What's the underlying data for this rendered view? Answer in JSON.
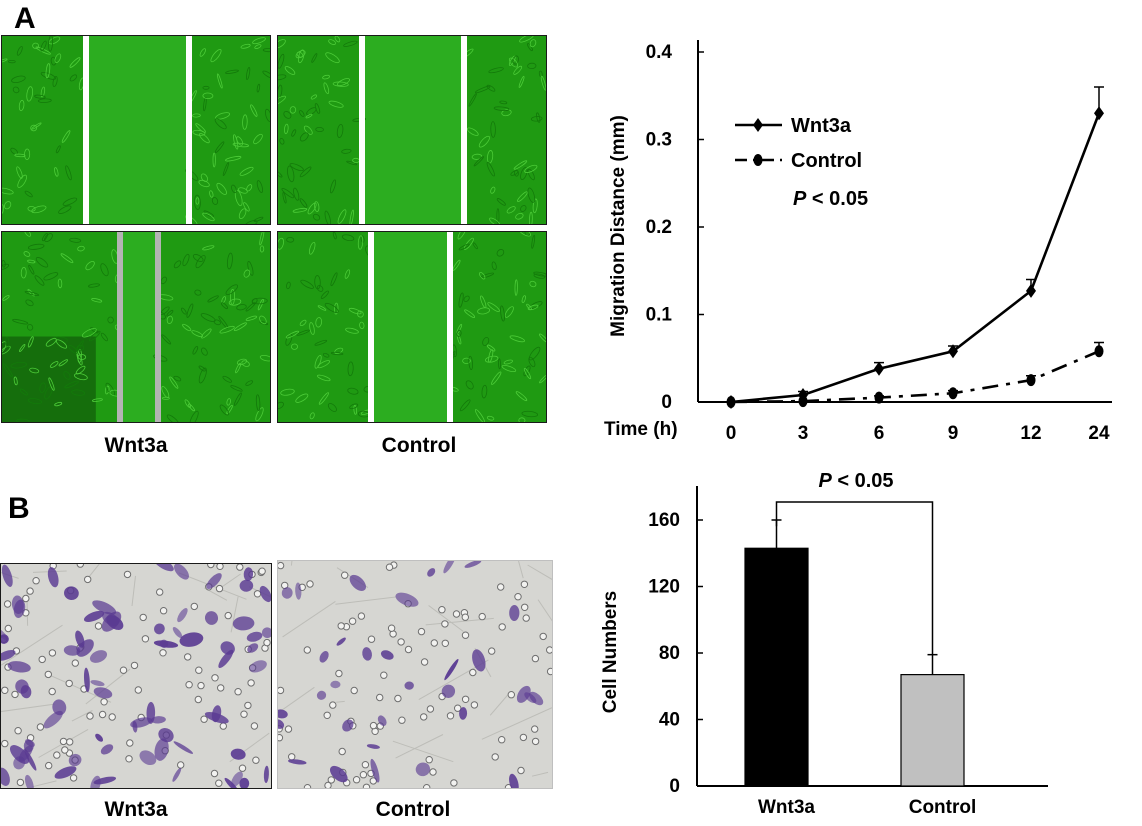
{
  "panel_a": {
    "letter": "A",
    "captions": {
      "left": "Wnt3a",
      "right": "Control"
    }
  },
  "panel_b": {
    "letter": "B",
    "captions": {
      "left": "Wnt3a",
      "right": "Control"
    }
  },
  "colors": {
    "wound_green": "#1f9a12",
    "wound_gap": "#2cad20",
    "gap_line": "#ffffff",
    "gap_line_gray": "#b4b4b4",
    "stain_background": "#d6d6d2",
    "stain_cell": "#5a3a92",
    "bar_wnt3a": "#000000",
    "bar_control": "#c0c0c0"
  },
  "chart_data": [
    {
      "type": "line",
      "ylabel": "Migration Distance (mm)",
      "x_axis_title": "Time (h)",
      "x_ticks": [
        "0",
        "3",
        "6",
        "9",
        "12",
        "24"
      ],
      "y_ticks": [
        "0",
        "0.1",
        "0.2",
        "0.3",
        "0.4"
      ],
      "ylim": [
        0,
        0.4
      ],
      "x_positions": [
        0,
        3,
        6,
        9,
        12,
        15
      ],
      "series": [
        {
          "name": "Wnt3a",
          "style": "solid",
          "marker": "diamond",
          "values": [
            0,
            0.008,
            0.038,
            0.058,
            0.127,
            0.33
          ],
          "errors": [
            0,
            0.004,
            0.007,
            0.006,
            0.013,
            0.03
          ]
        },
        {
          "name": "Control",
          "style": "dash-dot",
          "marker": "circle",
          "values": [
            0,
            0.001,
            0.005,
            0.01,
            0.025,
            0.058
          ],
          "errors": [
            0,
            0,
            0.002,
            0.003,
            0.005,
            0.01
          ]
        }
      ],
      "annotation": "< 0.05",
      "annotation_italic": "P",
      "legend_position": "top-left"
    },
    {
      "type": "bar",
      "ylabel": "Cell Numbers",
      "categories": [
        "Wnt3a",
        "Control"
      ],
      "values": [
        143,
        67
      ],
      "errors": [
        17,
        12
      ],
      "y_ticks": [
        "0",
        "40",
        "80",
        "120",
        "160"
      ],
      "ylim": [
        0,
        180
      ],
      "annotation": "< 0.05",
      "annotation_italic": "P"
    }
  ]
}
